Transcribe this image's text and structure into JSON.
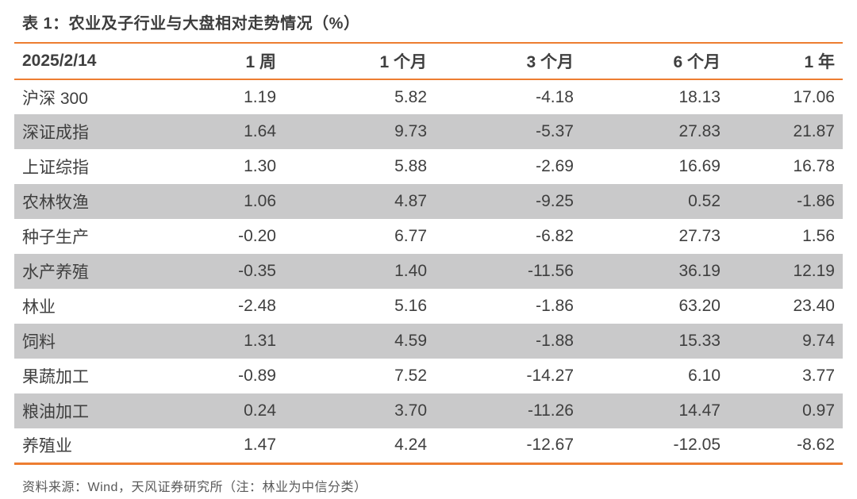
{
  "table": {
    "title": "表 1：农业及子行业与大盘相对走势情况（%）",
    "columns": [
      "2025/2/14",
      "1 周",
      "1 个月",
      "3 个月",
      "6 个月",
      "1 年"
    ],
    "rows": [
      {
        "label": "沪深 300",
        "values": [
          "1.19",
          "5.82",
          "-4.18",
          "18.13",
          "17.06"
        ]
      },
      {
        "label": "深证成指",
        "values": [
          "1.64",
          "9.73",
          "-5.37",
          "27.83",
          "21.87"
        ]
      },
      {
        "label": "上证综指",
        "values": [
          "1.30",
          "5.88",
          "-2.69",
          "16.69",
          "16.78"
        ]
      },
      {
        "label": "农林牧渔",
        "values": [
          "1.06",
          "4.87",
          "-9.25",
          "0.52",
          "-1.86"
        ]
      },
      {
        "label": "种子生产",
        "values": [
          "-0.20",
          "6.77",
          "-6.82",
          "27.73",
          "1.56"
        ]
      },
      {
        "label": "水产养殖",
        "values": [
          "-0.35",
          "1.40",
          "-11.56",
          "36.19",
          "12.19"
        ]
      },
      {
        "label": "林业",
        "values": [
          "-2.48",
          "5.16",
          "-1.86",
          "63.20",
          "23.40"
        ]
      },
      {
        "label": "饲料",
        "values": [
          "1.31",
          "4.59",
          "-1.88",
          "15.33",
          "9.74"
        ]
      },
      {
        "label": "果蔬加工",
        "values": [
          "-0.89",
          "7.52",
          "-14.27",
          "6.10",
          "3.77"
        ]
      },
      {
        "label": "粮油加工",
        "values": [
          "0.24",
          "3.70",
          "-11.26",
          "14.47",
          "0.97"
        ]
      },
      {
        "label": "养殖业",
        "values": [
          "1.47",
          "4.24",
          "-12.67",
          "-12.05",
          "-8.62"
        ]
      }
    ],
    "source_note": "资料来源：Wind，天风证券研究所（注：林业为中信分类）"
  },
  "colors": {
    "accent_orange": "#ED7D31",
    "stripe_gray": "#C9C9CA",
    "text_dark": "#3F3F3F",
    "note_gray": "#595959"
  },
  "chart_data": {
    "type": "table",
    "title": "表 1：农业及子行业与大盘相对走势情况（%）",
    "columns": [
      "2025/2/14",
      "1 周",
      "1 个月",
      "3 个月",
      "6 个月",
      "1 年"
    ],
    "rows": [
      [
        "沪深 300",
        1.19,
        5.82,
        -4.18,
        18.13,
        17.06
      ],
      [
        "深证成指",
        1.64,
        9.73,
        -5.37,
        27.83,
        21.87
      ],
      [
        "上证综指",
        1.3,
        5.88,
        -2.69,
        16.69,
        16.78
      ],
      [
        "农林牧渔",
        1.06,
        4.87,
        -9.25,
        0.52,
        -1.86
      ],
      [
        "种子生产",
        -0.2,
        6.77,
        -6.82,
        27.73,
        1.56
      ],
      [
        "水产养殖",
        -0.35,
        1.4,
        -11.56,
        36.19,
        12.19
      ],
      [
        "林业",
        -2.48,
        5.16,
        -1.86,
        63.2,
        23.4
      ],
      [
        "饲料",
        1.31,
        4.59,
        -1.88,
        15.33,
        9.74
      ],
      [
        "果蔬加工",
        -0.89,
        7.52,
        -14.27,
        6.1,
        3.77
      ],
      [
        "粮油加工",
        0.24,
        3.7,
        -11.26,
        14.47,
        0.97
      ],
      [
        "养殖业",
        1.47,
        4.24,
        -12.67,
        -12.05,
        -8.62
      ]
    ],
    "annotations": [
      "资料来源：Wind，天风证券研究所（注：林业为中信分类）"
    ]
  }
}
